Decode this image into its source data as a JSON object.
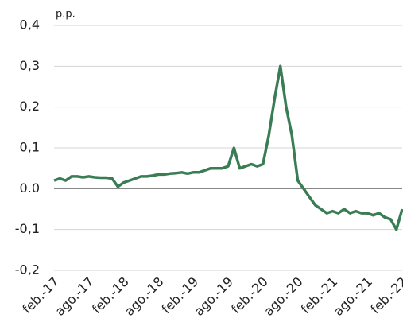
{
  "chart_data": {
    "type": "line",
    "unit_label": "p.p.",
    "x": [
      "2017-02",
      "2017-03",
      "2017-04",
      "2017-05",
      "2017-06",
      "2017-07",
      "2017-08",
      "2017-09",
      "2017-10",
      "2017-11",
      "2017-12",
      "2018-01",
      "2018-02",
      "2018-03",
      "2018-04",
      "2018-05",
      "2018-06",
      "2018-07",
      "2018-08",
      "2018-09",
      "2018-10",
      "2018-11",
      "2018-12",
      "2019-01",
      "2019-02",
      "2019-03",
      "2019-04",
      "2019-05",
      "2019-06",
      "2019-07",
      "2019-08",
      "2019-09",
      "2019-10",
      "2019-11",
      "2019-12",
      "2020-01",
      "2020-02",
      "2020-03",
      "2020-04",
      "2020-05",
      "2020-06",
      "2020-07",
      "2020-08",
      "2020-09",
      "2020-10",
      "2020-11",
      "2020-12",
      "2021-01",
      "2021-02",
      "2021-03",
      "2021-04",
      "2021-05",
      "2021-06",
      "2021-07",
      "2021-08",
      "2021-09",
      "2021-10",
      "2021-11",
      "2021-12",
      "2022-01",
      "2022-02"
    ],
    "series": [
      {
        "name": "p.p.",
        "color": "#3a7d55",
        "values": [
          0.02,
          0.025,
          0.02,
          0.03,
          0.03,
          0.028,
          0.03,
          0.028,
          0.027,
          0.027,
          0.025,
          0.005,
          0.015,
          0.02,
          0.025,
          0.03,
          0.03,
          0.032,
          0.035,
          0.035,
          0.037,
          0.038,
          0.04,
          0.037,
          0.04,
          0.04,
          0.045,
          0.05,
          0.05,
          0.05,
          0.055,
          0.1,
          0.05,
          0.055,
          0.06,
          0.055,
          0.06,
          0.13,
          0.22,
          0.3,
          0.2,
          0.13,
          0.02,
          0.0,
          -0.02,
          -0.04,
          -0.05,
          -0.06,
          -0.055,
          -0.06,
          -0.05,
          -0.06,
          -0.055,
          -0.06,
          -0.06,
          -0.065,
          -0.06,
          -0.07,
          -0.075,
          -0.1,
          -0.05
        ]
      }
    ],
    "xlim": [
      "2017-02",
      "2022-02"
    ],
    "xticks": [
      {
        "value": "2017-02",
        "label": "feb.-17"
      },
      {
        "value": "2017-08",
        "label": "ago.-17"
      },
      {
        "value": "2018-02",
        "label": "feb.-18"
      },
      {
        "value": "2018-08",
        "label": "ago.-18"
      },
      {
        "value": "2019-02",
        "label": "feb.-19"
      },
      {
        "value": "2019-08",
        "label": "ago.-19"
      },
      {
        "value": "2020-02",
        "label": "feb.-20"
      },
      {
        "value": "2020-08",
        "label": "ago.-20"
      },
      {
        "value": "2021-02",
        "label": "feb.-21"
      },
      {
        "value": "2021-08",
        "label": "ago.-21"
      },
      {
        "value": "2022-02",
        "label": "feb.-22"
      }
    ],
    "ylim": [
      -0.2,
      0.4
    ],
    "yticks": [
      {
        "value": -0.2,
        "label": "-0,2"
      },
      {
        "value": -0.1,
        "label": "-0,1"
      },
      {
        "value": 0,
        "label": "0.0"
      },
      {
        "value": 0.1,
        "label": "0,1"
      },
      {
        "value": 0.2,
        "label": "0,2"
      },
      {
        "value": 0.3,
        "label": "0,3"
      },
      {
        "value": 0.4,
        "label": "0,4"
      }
    ],
    "grid": true
  }
}
